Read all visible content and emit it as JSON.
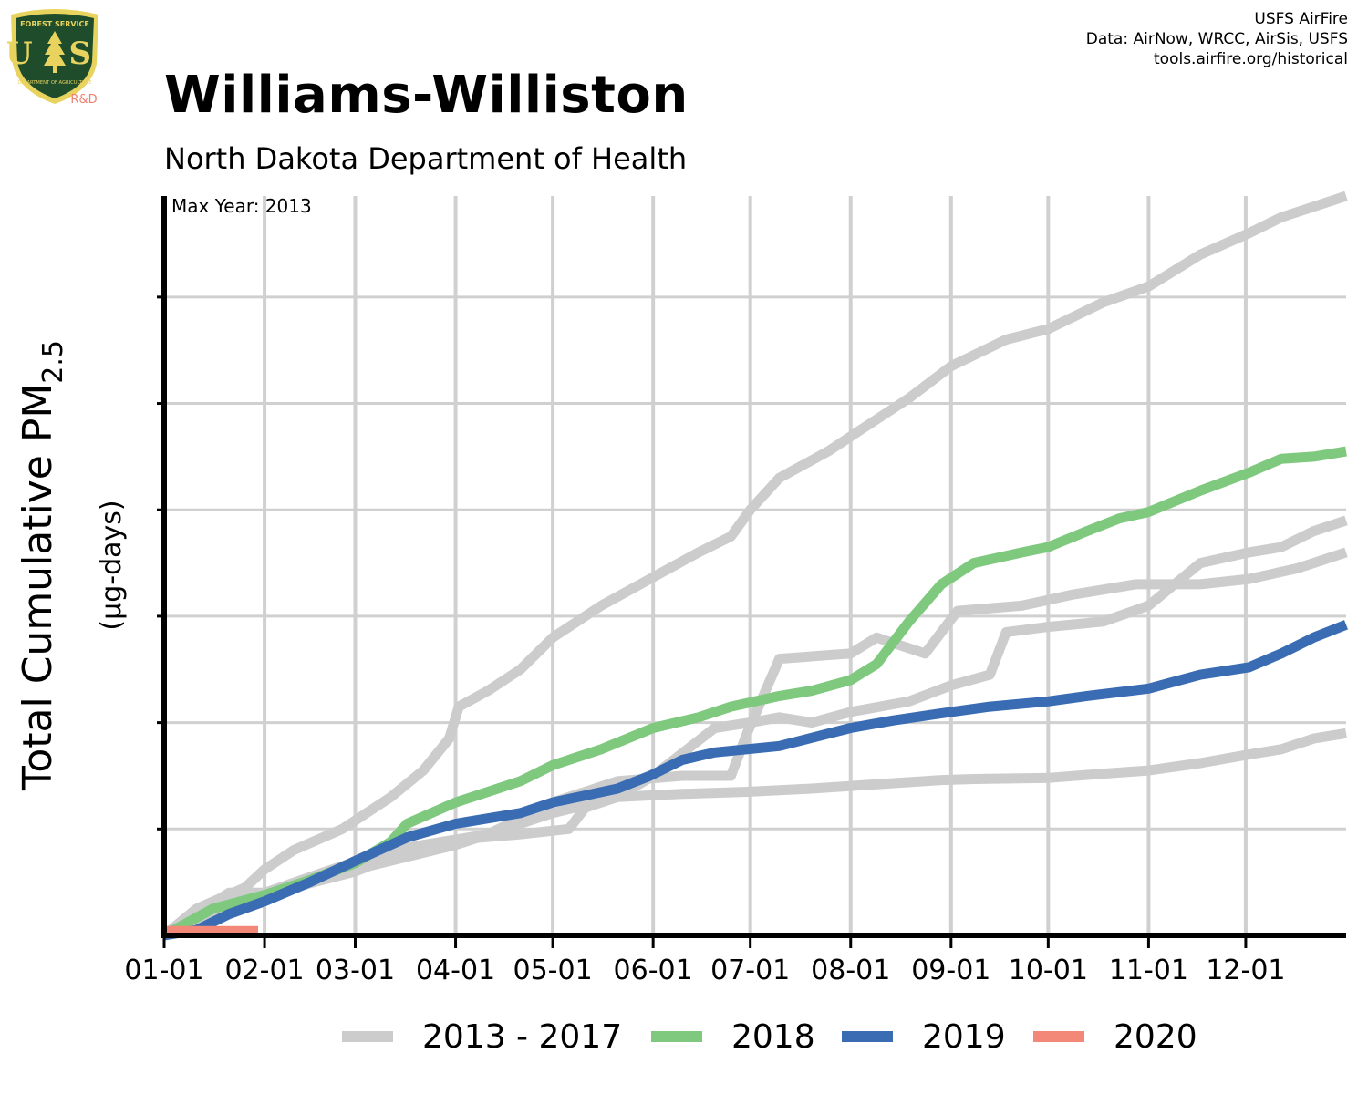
{
  "header": {
    "title": "Williams-Williston",
    "subtitle": "North Dakota Department of Health",
    "credits": [
      "USFS AirFire",
      "Data: AirNow, WRCC, AirSis, USFS",
      "tools.airfire.org/historical"
    ]
  },
  "logo": {
    "name": "usfs-forest-service-shield",
    "text_top": "FOREST SERVICE",
    "text_main": "U S",
    "text_bottom": "DEPARTMENT OF AGRICULTURE",
    "badge": "R&D",
    "colors": {
      "shield": "#1f4d2b",
      "gold": "#e8d35f",
      "badge": "#f08070"
    }
  },
  "chart_data": {
    "type": "line",
    "title": "Williams-Williston",
    "ylabel_main": "Total Cumulative PM",
    "ylabel_sub": "2.5",
    "ylabel_units": "(µg-days)",
    "annotation": "Max Year: 2013",
    "x_tick_labels": [
      "01-01",
      "02-01",
      "03-01",
      "04-01",
      "05-01",
      "06-01",
      "07-01",
      "08-01",
      "09-01",
      "10-01",
      "11-01",
      "12-01"
    ],
    "x_tick_days": [
      0,
      31,
      59,
      90,
      120,
      151,
      181,
      212,
      243,
      273,
      304,
      334
    ],
    "xlim": [
      0,
      365
    ],
    "ylim": [
      0,
      6.95
    ],
    "y_gridlines": [
      1,
      2,
      3,
      4,
      5,
      6
    ],
    "y_tick_labels": "none",
    "grid": true,
    "legend_position": "bottom",
    "legend": [
      {
        "label": "2013 - 2017",
        "color": "#cccccc"
      },
      {
        "label": "2018",
        "color": "#7fc97f"
      },
      {
        "label": "2019",
        "color": "#3a6cb3"
      },
      {
        "label": "2020",
        "color": "#f38878"
      }
    ],
    "series": [
      {
        "group": "2013 - 2017",
        "color": "#cccccc",
        "points": [
          [
            0,
            0
          ],
          [
            10,
            0.25
          ],
          [
            25,
            0.45
          ],
          [
            31,
            0.62
          ],
          [
            40,
            0.8
          ],
          [
            55,
            1.0
          ],
          [
            70,
            1.3
          ],
          [
            80,
            1.55
          ],
          [
            88,
            1.85
          ],
          [
            91,
            2.15
          ],
          [
            100,
            2.3
          ],
          [
            110,
            2.5
          ],
          [
            120,
            2.8
          ],
          [
            135,
            3.1
          ],
          [
            150,
            3.35
          ],
          [
            165,
            3.6
          ],
          [
            175,
            3.75
          ],
          [
            181,
            4.0
          ],
          [
            190,
            4.3
          ],
          [
            205,
            4.55
          ],
          [
            215,
            4.75
          ],
          [
            230,
            5.05
          ],
          [
            243,
            5.35
          ],
          [
            260,
            5.6
          ],
          [
            273,
            5.7
          ],
          [
            290,
            5.95
          ],
          [
            304,
            6.1
          ],
          [
            320,
            6.4
          ],
          [
            335,
            6.6
          ],
          [
            345,
            6.75
          ],
          [
            355,
            6.85
          ],
          [
            365,
            6.95
          ]
        ]
      },
      {
        "group": "2013 - 2017",
        "color": "#cccccc",
        "points": [
          [
            0,
            0
          ],
          [
            20,
            0.4
          ],
          [
            31,
            0.4
          ],
          [
            50,
            0.6
          ],
          [
            70,
            0.8
          ],
          [
            90,
            0.9
          ],
          [
            110,
            0.95
          ],
          [
            125,
            1.0
          ],
          [
            130,
            1.2
          ],
          [
            140,
            1.3
          ],
          [
            160,
            1.33
          ],
          [
            180,
            1.35
          ],
          [
            200,
            1.38
          ],
          [
            220,
            1.42
          ],
          [
            240,
            1.46
          ],
          [
            250,
            1.47
          ],
          [
            273,
            1.48
          ],
          [
            290,
            1.52
          ],
          [
            304,
            1.55
          ],
          [
            320,
            1.62
          ],
          [
            335,
            1.7
          ],
          [
            345,
            1.75
          ],
          [
            355,
            1.85
          ],
          [
            365,
            1.9
          ]
        ]
      },
      {
        "group": "2013 - 2017",
        "color": "#cccccc",
        "points": [
          [
            0,
            0
          ],
          [
            31,
            0.38
          ],
          [
            59,
            0.6
          ],
          [
            80,
            0.85
          ],
          [
            100,
            0.95
          ],
          [
            120,
            1.25
          ],
          [
            140,
            1.45
          ],
          [
            160,
            1.5
          ],
          [
            175,
            1.5
          ],
          [
            180,
            1.9
          ],
          [
            190,
            2.6
          ],
          [
            212,
            2.65
          ],
          [
            220,
            2.8
          ],
          [
            235,
            2.65
          ],
          [
            245,
            3.05
          ],
          [
            265,
            3.1
          ],
          [
            280,
            3.2
          ],
          [
            300,
            3.3
          ],
          [
            320,
            3.3
          ],
          [
            335,
            3.35
          ],
          [
            350,
            3.45
          ],
          [
            365,
            3.6
          ]
        ]
      },
      {
        "group": "2013 - 2017",
        "color": "#cccccc",
        "points": [
          [
            0,
            0
          ],
          [
            31,
            0.4
          ],
          [
            59,
            0.62
          ],
          [
            90,
            0.85
          ],
          [
            120,
            1.15
          ],
          [
            140,
            1.3
          ],
          [
            151,
            1.5
          ],
          [
            170,
            1.95
          ],
          [
            181,
            2.0
          ],
          [
            190,
            2.05
          ],
          [
            200,
            2.0
          ],
          [
            212,
            2.1
          ],
          [
            230,
            2.2
          ],
          [
            243,
            2.35
          ],
          [
            255,
            2.45
          ],
          [
            260,
            2.85
          ],
          [
            273,
            2.9
          ],
          [
            290,
            2.95
          ],
          [
            304,
            3.1
          ],
          [
            320,
            3.5
          ],
          [
            335,
            3.6
          ],
          [
            345,
            3.65
          ],
          [
            355,
            3.8
          ],
          [
            365,
            3.9
          ]
        ]
      },
      {
        "group": "2018",
        "color": "#7fc97f",
        "points": [
          [
            0,
            0
          ],
          [
            15,
            0.25
          ],
          [
            31,
            0.38
          ],
          [
            45,
            0.52
          ],
          [
            59,
            0.68
          ],
          [
            70,
            0.88
          ],
          [
            75,
            1.05
          ],
          [
            90,
            1.25
          ],
          [
            100,
            1.35
          ],
          [
            110,
            1.45
          ],
          [
            120,
            1.6
          ],
          [
            135,
            1.75
          ],
          [
            151,
            1.95
          ],
          [
            165,
            2.05
          ],
          [
            175,
            2.15
          ],
          [
            190,
            2.25
          ],
          [
            200,
            2.3
          ],
          [
            212,
            2.4
          ],
          [
            220,
            2.55
          ],
          [
            230,
            2.95
          ],
          [
            240,
            3.3
          ],
          [
            250,
            3.5
          ],
          [
            265,
            3.6
          ],
          [
            273,
            3.65
          ],
          [
            285,
            3.8
          ],
          [
            295,
            3.92
          ],
          [
            304,
            3.98
          ],
          [
            320,
            4.18
          ],
          [
            335,
            4.35
          ],
          [
            345,
            4.48
          ],
          [
            355,
            4.5
          ],
          [
            365,
            4.55
          ]
        ]
      },
      {
        "group": "2019",
        "color": "#3a6cb3",
        "points": [
          [
            0,
            0
          ],
          [
            10,
            0.05
          ],
          [
            20,
            0.2
          ],
          [
            31,
            0.32
          ],
          [
            45,
            0.5
          ],
          [
            59,
            0.7
          ],
          [
            75,
            0.92
          ],
          [
            90,
            1.05
          ],
          [
            110,
            1.15
          ],
          [
            120,
            1.25
          ],
          [
            140,
            1.38
          ],
          [
            150,
            1.5
          ],
          [
            160,
            1.65
          ],
          [
            170,
            1.72
          ],
          [
            190,
            1.78
          ],
          [
            212,
            1.95
          ],
          [
            225,
            2.02
          ],
          [
            243,
            2.1
          ],
          [
            255,
            2.15
          ],
          [
            273,
            2.2
          ],
          [
            285,
            2.25
          ],
          [
            304,
            2.32
          ],
          [
            320,
            2.45
          ],
          [
            335,
            2.52
          ],
          [
            345,
            2.65
          ],
          [
            355,
            2.8
          ],
          [
            365,
            2.92
          ]
        ]
      },
      {
        "group": "2020",
        "color": "#f38878",
        "points": [
          [
            0,
            0.04
          ],
          [
            29,
            0.04
          ]
        ]
      }
    ]
  }
}
